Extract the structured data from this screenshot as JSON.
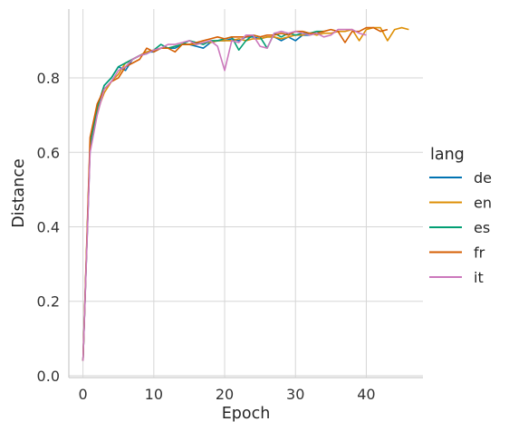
{
  "chart_data": {
    "type": "line",
    "title": "",
    "xlabel": "Epoch",
    "ylabel": "Distance",
    "xlim": [
      -2,
      48
    ],
    "ylim": [
      -0.005,
      0.985
    ],
    "xticks": [
      0,
      10,
      20,
      30,
      40
    ],
    "yticks": [
      0.0,
      0.2,
      0.4,
      0.6,
      0.8
    ],
    "ytick_labels": [
      "0.0",
      "0.2",
      "0.4",
      "0.6",
      "0.8"
    ],
    "grid": true,
    "legend": {
      "title": "lang",
      "placement": "right"
    },
    "series": [
      {
        "name": "de",
        "color": "#0173b2",
        "x": [
          0,
          1,
          2,
          3,
          4,
          5,
          6,
          7,
          8,
          9,
          10,
          11,
          12,
          13,
          14,
          15,
          16,
          17,
          18,
          19,
          20,
          21,
          22,
          23,
          24,
          25,
          26,
          27,
          28,
          29,
          30,
          31,
          32,
          33,
          34
        ],
        "y": [
          0.04,
          0.61,
          0.72,
          0.78,
          0.8,
          0.83,
          0.82,
          0.85,
          0.86,
          0.87,
          0.87,
          0.88,
          0.88,
          0.88,
          0.89,
          0.89,
          0.885,
          0.88,
          0.895,
          0.9,
          0.9,
          0.905,
          0.9,
          0.91,
          0.91,
          0.905,
          0.91,
          0.91,
          0.9,
          0.91,
          0.9,
          0.915,
          0.915,
          0.92,
          0.925
        ]
      },
      {
        "name": "en",
        "color": "#de8f05",
        "x": [
          0,
          1,
          2,
          3,
          4,
          5,
          6,
          7,
          8,
          9,
          10,
          11,
          12,
          13,
          14,
          15,
          16,
          17,
          18,
          19,
          20,
          21,
          22,
          23,
          24,
          25,
          26,
          27,
          28,
          29,
          30,
          31,
          32,
          33,
          34,
          35,
          36,
          37,
          38,
          39,
          40,
          41,
          42,
          43,
          44,
          45,
          46
        ],
        "y": [
          0.04,
          0.62,
          0.71,
          0.76,
          0.79,
          0.81,
          0.84,
          0.85,
          0.86,
          0.87,
          0.875,
          0.88,
          0.88,
          0.885,
          0.89,
          0.89,
          0.89,
          0.895,
          0.895,
          0.9,
          0.9,
          0.9,
          0.905,
          0.9,
          0.905,
          0.905,
          0.91,
          0.91,
          0.905,
          0.91,
          0.915,
          0.915,
          0.92,
          0.915,
          0.92,
          0.92,
          0.925,
          0.925,
          0.93,
          0.9,
          0.93,
          0.935,
          0.935,
          0.9,
          0.93,
          0.935,
          0.93
        ]
      },
      {
        "name": "es",
        "color": "#029e73",
        "x": [
          0,
          1,
          2,
          3,
          4,
          5,
          6,
          7,
          8,
          9,
          10,
          11,
          12,
          13,
          14,
          15,
          16,
          17,
          18,
          19,
          20,
          21,
          22,
          23,
          24,
          25,
          26,
          27,
          28,
          29,
          30,
          31,
          32,
          33,
          34
        ],
        "y": [
          0.04,
          0.62,
          0.72,
          0.78,
          0.8,
          0.83,
          0.84,
          0.85,
          0.86,
          0.865,
          0.875,
          0.89,
          0.88,
          0.885,
          0.89,
          0.9,
          0.895,
          0.89,
          0.9,
          0.9,
          0.905,
          0.91,
          0.875,
          0.9,
          0.915,
          0.91,
          0.88,
          0.92,
          0.91,
          0.92,
          0.915,
          0.92,
          0.92,
          0.925,
          0.925
        ]
      },
      {
        "name": "fr",
        "color": "#d55e00",
        "x": [
          0,
          1,
          2,
          3,
          4,
          5,
          6,
          7,
          8,
          9,
          10,
          11,
          12,
          13,
          14,
          15,
          16,
          17,
          18,
          19,
          20,
          21,
          22,
          23,
          24,
          25,
          26,
          27,
          28,
          29,
          30,
          31,
          32,
          33,
          34,
          35,
          36,
          37,
          38,
          39,
          40,
          41,
          42,
          43
        ],
        "y": [
          0.04,
          0.64,
          0.73,
          0.77,
          0.79,
          0.8,
          0.83,
          0.84,
          0.85,
          0.88,
          0.87,
          0.88,
          0.88,
          0.87,
          0.89,
          0.89,
          0.895,
          0.9,
          0.905,
          0.91,
          0.905,
          0.91,
          0.91,
          0.91,
          0.915,
          0.91,
          0.915,
          0.915,
          0.92,
          0.915,
          0.925,
          0.925,
          0.92,
          0.92,
          0.925,
          0.93,
          0.925,
          0.895,
          0.925,
          0.925,
          0.935,
          0.935,
          0.925,
          0.93
        ]
      },
      {
        "name": "it",
        "color": "#cc78bc",
        "x": [
          0,
          1,
          2,
          3,
          4,
          5,
          6,
          7,
          8,
          9,
          10,
          11,
          12,
          13,
          14,
          15,
          16,
          17,
          18,
          19,
          20,
          21,
          22,
          23,
          24,
          25,
          26,
          27,
          28,
          29,
          30,
          31,
          32,
          33,
          34,
          35,
          36,
          37,
          38,
          39,
          40
        ],
        "y": [
          0.04,
          0.6,
          0.7,
          0.77,
          0.79,
          0.82,
          0.83,
          0.85,
          0.86,
          0.865,
          0.875,
          0.88,
          0.89,
          0.89,
          0.895,
          0.9,
          0.89,
          0.895,
          0.9,
          0.885,
          0.82,
          0.9,
          0.895,
          0.915,
          0.915,
          0.885,
          0.88,
          0.92,
          0.925,
          0.92,
          0.925,
          0.92,
          0.915,
          0.92,
          0.91,
          0.915,
          0.93,
          0.93,
          0.93,
          0.92,
          0.915
        ]
      }
    ]
  }
}
